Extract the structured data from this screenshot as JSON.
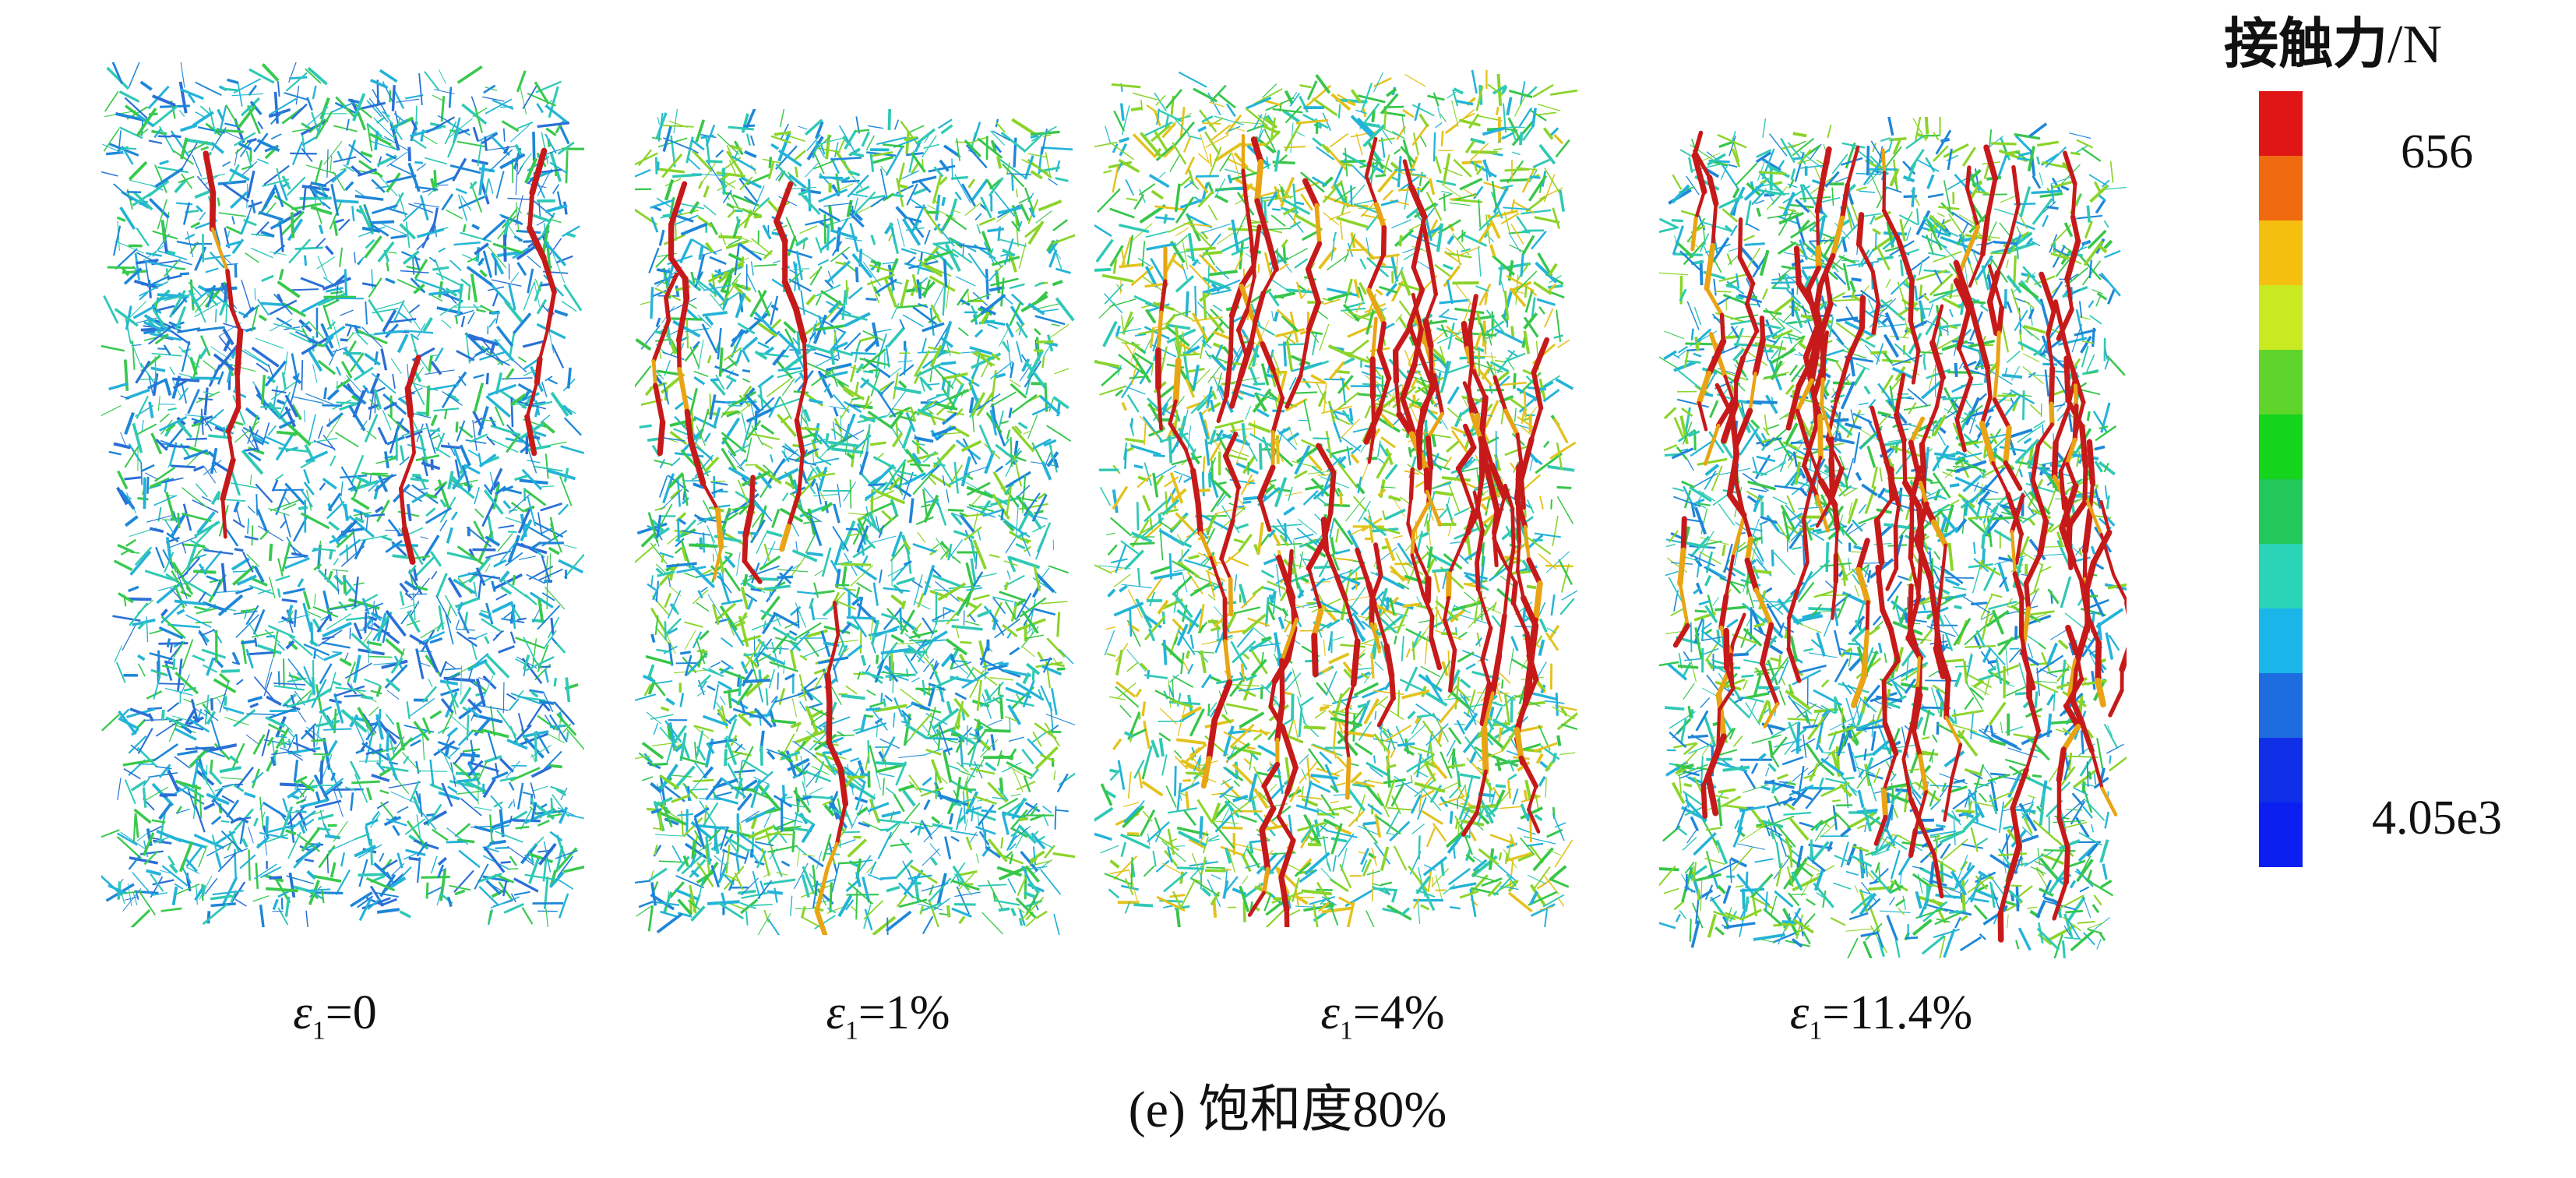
{
  "panels": [
    {
      "strain_symbol": "ε",
      "strain_sub": "1",
      "strain_value": "=0",
      "dominant": [
        "#2a6fd6",
        "#24b3d8",
        "#2fc9b5",
        "#38c94d",
        "#1e86d8"
      ],
      "red_share": 0.01
    },
    {
      "strain_symbol": "ε",
      "strain_sub": "1",
      "strain_value": "=1%",
      "dominant": [
        "#37c64a",
        "#2fc9b5",
        "#24b3d8",
        "#8bd42a",
        "#1e86d8"
      ],
      "red_share": 0.02
    },
    {
      "strain_symbol": "ε",
      "strain_sub": "1",
      "strain_value": "=4%",
      "dominant": [
        "#37c64a",
        "#2fc9b5",
        "#8bd42a",
        "#24b3d8",
        "#e3c21c"
      ],
      "red_share": 0.12
    },
    {
      "strain_symbol": "ε",
      "strain_sub": "1",
      "strain_value": "=11.4%",
      "dominant": [
        "#37c64a",
        "#2fc9b5",
        "#24b3d8",
        "#8bd42a",
        "#1e86d8"
      ],
      "red_share": 0.16
    }
  ],
  "caption": "(e) 饱和度80%",
  "legend": {
    "title": "接触力",
    "unit": "/N",
    "max_label": "656",
    "min_label": "4.05e3",
    "colors": [
      "#e01616",
      "#f06a10",
      "#f5bf10",
      "#c9ea20",
      "#5fd42a",
      "#14d41c",
      "#22c85a",
      "#2ad4b6",
      "#1ab6ea",
      "#1e6de0",
      "#1030e8",
      "#0a1ff0"
    ]
  }
}
